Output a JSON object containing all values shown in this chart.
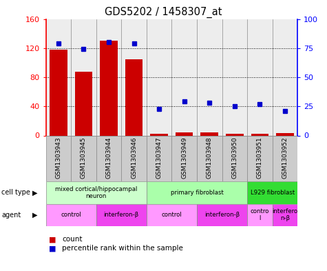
{
  "title": "GDS5202 / 1458307_at",
  "samples": [
    "GSM1303943",
    "GSM1303945",
    "GSM1303944",
    "GSM1303946",
    "GSM1303947",
    "GSM1303949",
    "GSM1303948",
    "GSM1303950",
    "GSM1303951",
    "GSM1303952"
  ],
  "counts": [
    118,
    88,
    130,
    105,
    2,
    4,
    4,
    2,
    2,
    3
  ],
  "percentiles": [
    79,
    74,
    80,
    79,
    23,
    29,
    28,
    25,
    27,
    21
  ],
  "ylim_left": [
    0,
    160
  ],
  "ylim_right": [
    0,
    100
  ],
  "yticks_left": [
    0,
    40,
    80,
    120,
    160
  ],
  "yticks_right": [
    0,
    25,
    50,
    75,
    100
  ],
  "bar_color": "#cc0000",
  "dot_color": "#0000cc",
  "cell_groups": [
    {
      "start": 0,
      "end": 4,
      "label": "mixed cortical/hippocampal\nneuron",
      "color": "#ccffcc"
    },
    {
      "start": 4,
      "end": 8,
      "label": "primary fibroblast",
      "color": "#aaffaa"
    },
    {
      "start": 8,
      "end": 10,
      "label": "L929 fibroblast",
      "color": "#33dd33"
    }
  ],
  "agent_groups": [
    {
      "start": 0,
      "end": 2,
      "label": "control",
      "color": "#ff99ff"
    },
    {
      "start": 2,
      "end": 4,
      "label": "interferon-β",
      "color": "#ee44ee"
    },
    {
      "start": 4,
      "end": 6,
      "label": "control",
      "color": "#ff99ff"
    },
    {
      "start": 6,
      "end": 8,
      "label": "interferon-β",
      "color": "#ee44ee"
    },
    {
      "start": 8,
      "end": 9,
      "label": "contro\nl",
      "color": "#ff99ff"
    },
    {
      "start": 9,
      "end": 10,
      "label": "interfero\nn-β",
      "color": "#ee44ee"
    }
  ],
  "legend_count": "count",
  "legend_percentile": "percentile rank within the sample",
  "bg_color": "#ffffff",
  "sample_bg": "#cccccc"
}
